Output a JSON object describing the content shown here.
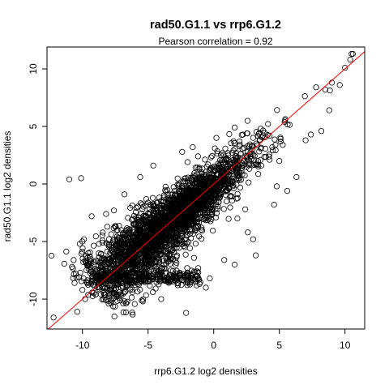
{
  "chart_data": {
    "type": "scatter",
    "title": "rad50.G1.1 vs rrp6.G1.2",
    "subtitle": "Pearson correlation =  0.92",
    "xlabel": "rrp6.G1.2 log2 densities",
    "ylabel": "rad50.G1.1 log2 densities",
    "xlim": [
      -12.7,
      11.5
    ],
    "ylim": [
      -12.6,
      11.9
    ],
    "xticks": [
      -10,
      -5,
      0,
      5,
      10
    ],
    "yticks": [
      -10,
      -5,
      0,
      5,
      10
    ],
    "grid": false,
    "legend": "none",
    "point_color": "#000000",
    "fit_line": {
      "slope": 1,
      "intercept": 0,
      "color": "#ff0000"
    },
    "outlier_points": [
      {
        "x": -12.2,
        "y": -11.6
      },
      {
        "x": -10.4,
        "y": -11.1
      },
      {
        "x": -10.0,
        "y": -9.2
      },
      {
        "x": -10.6,
        "y": -8.6
      },
      {
        "x": -10.5,
        "y": -7.8
      },
      {
        "x": -10.8,
        "y": -7.2
      },
      {
        "x": -10.2,
        "y": -5.2
      },
      {
        "x": -10.0,
        "y": -5.0
      },
      {
        "x": -9.6,
        "y": -6.4
      },
      {
        "x": -9.4,
        "y": -7.2
      },
      {
        "x": -9.0,
        "y": -9.6
      },
      {
        "x": -9.8,
        "y": -10.0
      },
      {
        "x": -11.0,
        "y": 0.4
      },
      {
        "x": -10.1,
        "y": 0.5
      },
      {
        "x": -9.3,
        "y": -2.8
      },
      {
        "x": -8.2,
        "y": -2.6
      },
      {
        "x": -7.6,
        "y": -2.3
      },
      {
        "x": -6.8,
        "y": -0.9
      },
      {
        "x": -5.6,
        "y": 0.6
      },
      {
        "x": -4.6,
        "y": 1.6
      },
      {
        "x": -2.4,
        "y": 2.8
      },
      {
        "x": -2.0,
        "y": 1.9
      },
      {
        "x": -1.6,
        "y": 3.2
      },
      {
        "x": -1.2,
        "y": 2.4
      },
      {
        "x": -2.1,
        "y": -11.2
      },
      {
        "x": -0.3,
        "y": -8.2
      },
      {
        "x": 0.8,
        "y": -6.6
      },
      {
        "x": -4.0,
        "y": -10.0
      },
      {
        "x": -5.4,
        "y": -10.2
      },
      {
        "x": -7.4,
        "y": -9.8
      },
      {
        "x": -8.0,
        "y": -10.4
      },
      {
        "x": -6.2,
        "y": -9.4
      },
      {
        "x": 3.2,
        "y": -6.2
      },
      {
        "x": 3.0,
        "y": -4.8
      },
      {
        "x": 2.6,
        "y": -4.2
      },
      {
        "x": 4.6,
        "y": -1.8
      },
      {
        "x": 4.8,
        "y": -0.2
      },
      {
        "x": 5.6,
        "y": -0.6
      },
      {
        "x": 6.3,
        "y": 0.6
      },
      {
        "x": 7.0,
        "y": 3.8
      },
      {
        "x": 7.4,
        "y": 4.3
      },
      {
        "x": 8.2,
        "y": 4.6
      },
      {
        "x": 8.8,
        "y": 6.4
      },
      {
        "x": 9.6,
        "y": 8.6
      },
      {
        "x": 10.0,
        "y": 10.1
      },
      {
        "x": 10.4,
        "y": 10.8
      },
      {
        "x": 10.5,
        "y": 11.3
      },
      {
        "x": 10.6,
        "y": 11.3
      },
      {
        "x": 9.0,
        "y": 8.8
      },
      {
        "x": 8.5,
        "y": 8.2
      },
      {
        "x": 7.8,
        "y": 8.4
      },
      {
        "x": 5.0,
        "y": 2.0
      },
      {
        "x": 3.4,
        "y": 1.5
      },
      {
        "x": 1.6,
        "y": 4.9
      },
      {
        "x": 0.2,
        "y": 4.0
      },
      {
        "x": 2.4,
        "y": -2.2
      },
      {
        "x": 1.8,
        "y": -3.0
      },
      {
        "x": -0.6,
        "y": -9.0
      },
      {
        "x": 1.6,
        "y": -7.0
      }
    ]
  }
}
